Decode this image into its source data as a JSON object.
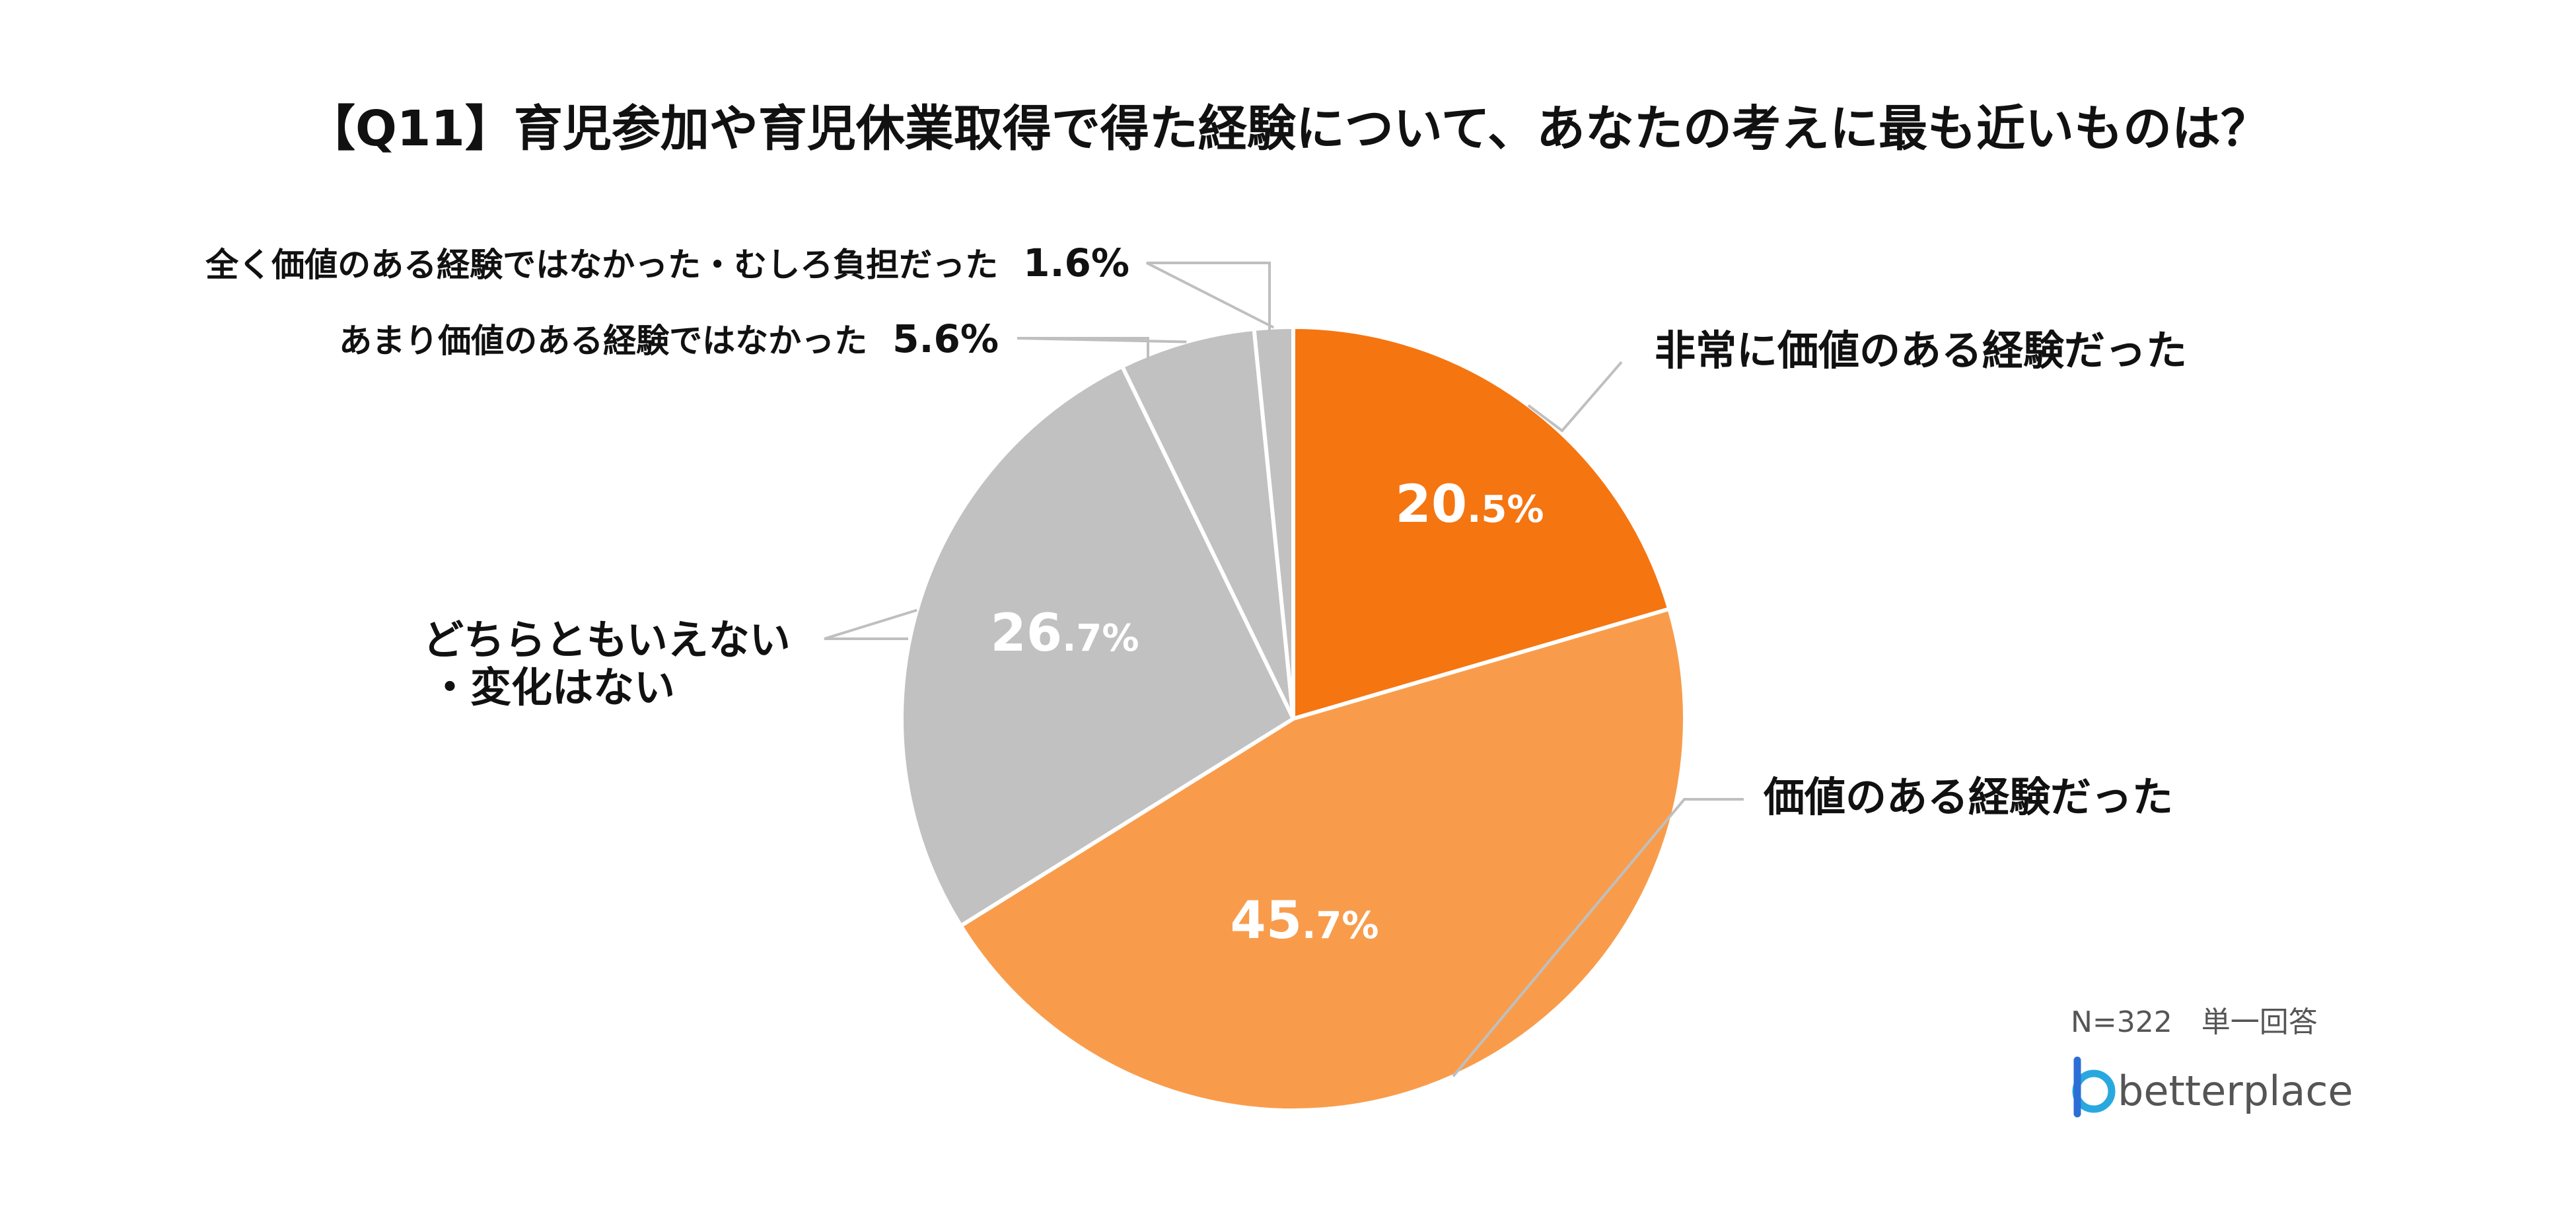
{
  "title": "【Q11】育児参加や育児休業取得で得た経験について、あなたの考えに最も近いものは？",
  "note": "N=322　単一回答",
  "logo": {
    "text": "betterplace",
    "icon": "betterplace-logo-icon"
  },
  "colors": {
    "very_valuable": "#F57511",
    "valuable": "#F89C4C",
    "neutral": "#C1C1C1",
    "not_much": "#C1C1C1",
    "not_at_all": "#C1C1C1",
    "leader": "#BFBFBF"
  },
  "chart_data": {
    "type": "pie",
    "start": "12 o'clock",
    "direction": "clockwise",
    "slices": [
      {
        "key": "very_valuable",
        "label": "非常に価値のある経験だった",
        "value": 20.5,
        "int": "20",
        "dec": ".5%",
        "label_inside": true
      },
      {
        "key": "valuable",
        "label": "価値のある経験だった",
        "value": 45.7,
        "int": "45",
        "dec": ".7%",
        "label_inside": true
      },
      {
        "key": "neutral",
        "label_lines": [
          "どちらともいえない",
          "・変化はない"
        ],
        "value": 26.7,
        "int": "26",
        "dec": ".7%",
        "label_inside": true
      },
      {
        "key": "not_much",
        "label": "あまり価値のある経験ではなかった",
        "value": 5.6,
        "value_text": "5.6%",
        "label_inside": false
      },
      {
        "key": "not_at_all",
        "label": "全く価値のある経験ではなかった・むしろ負担だった",
        "value": 1.6,
        "value_text": "1.6%",
        "label_inside": false
      }
    ]
  }
}
